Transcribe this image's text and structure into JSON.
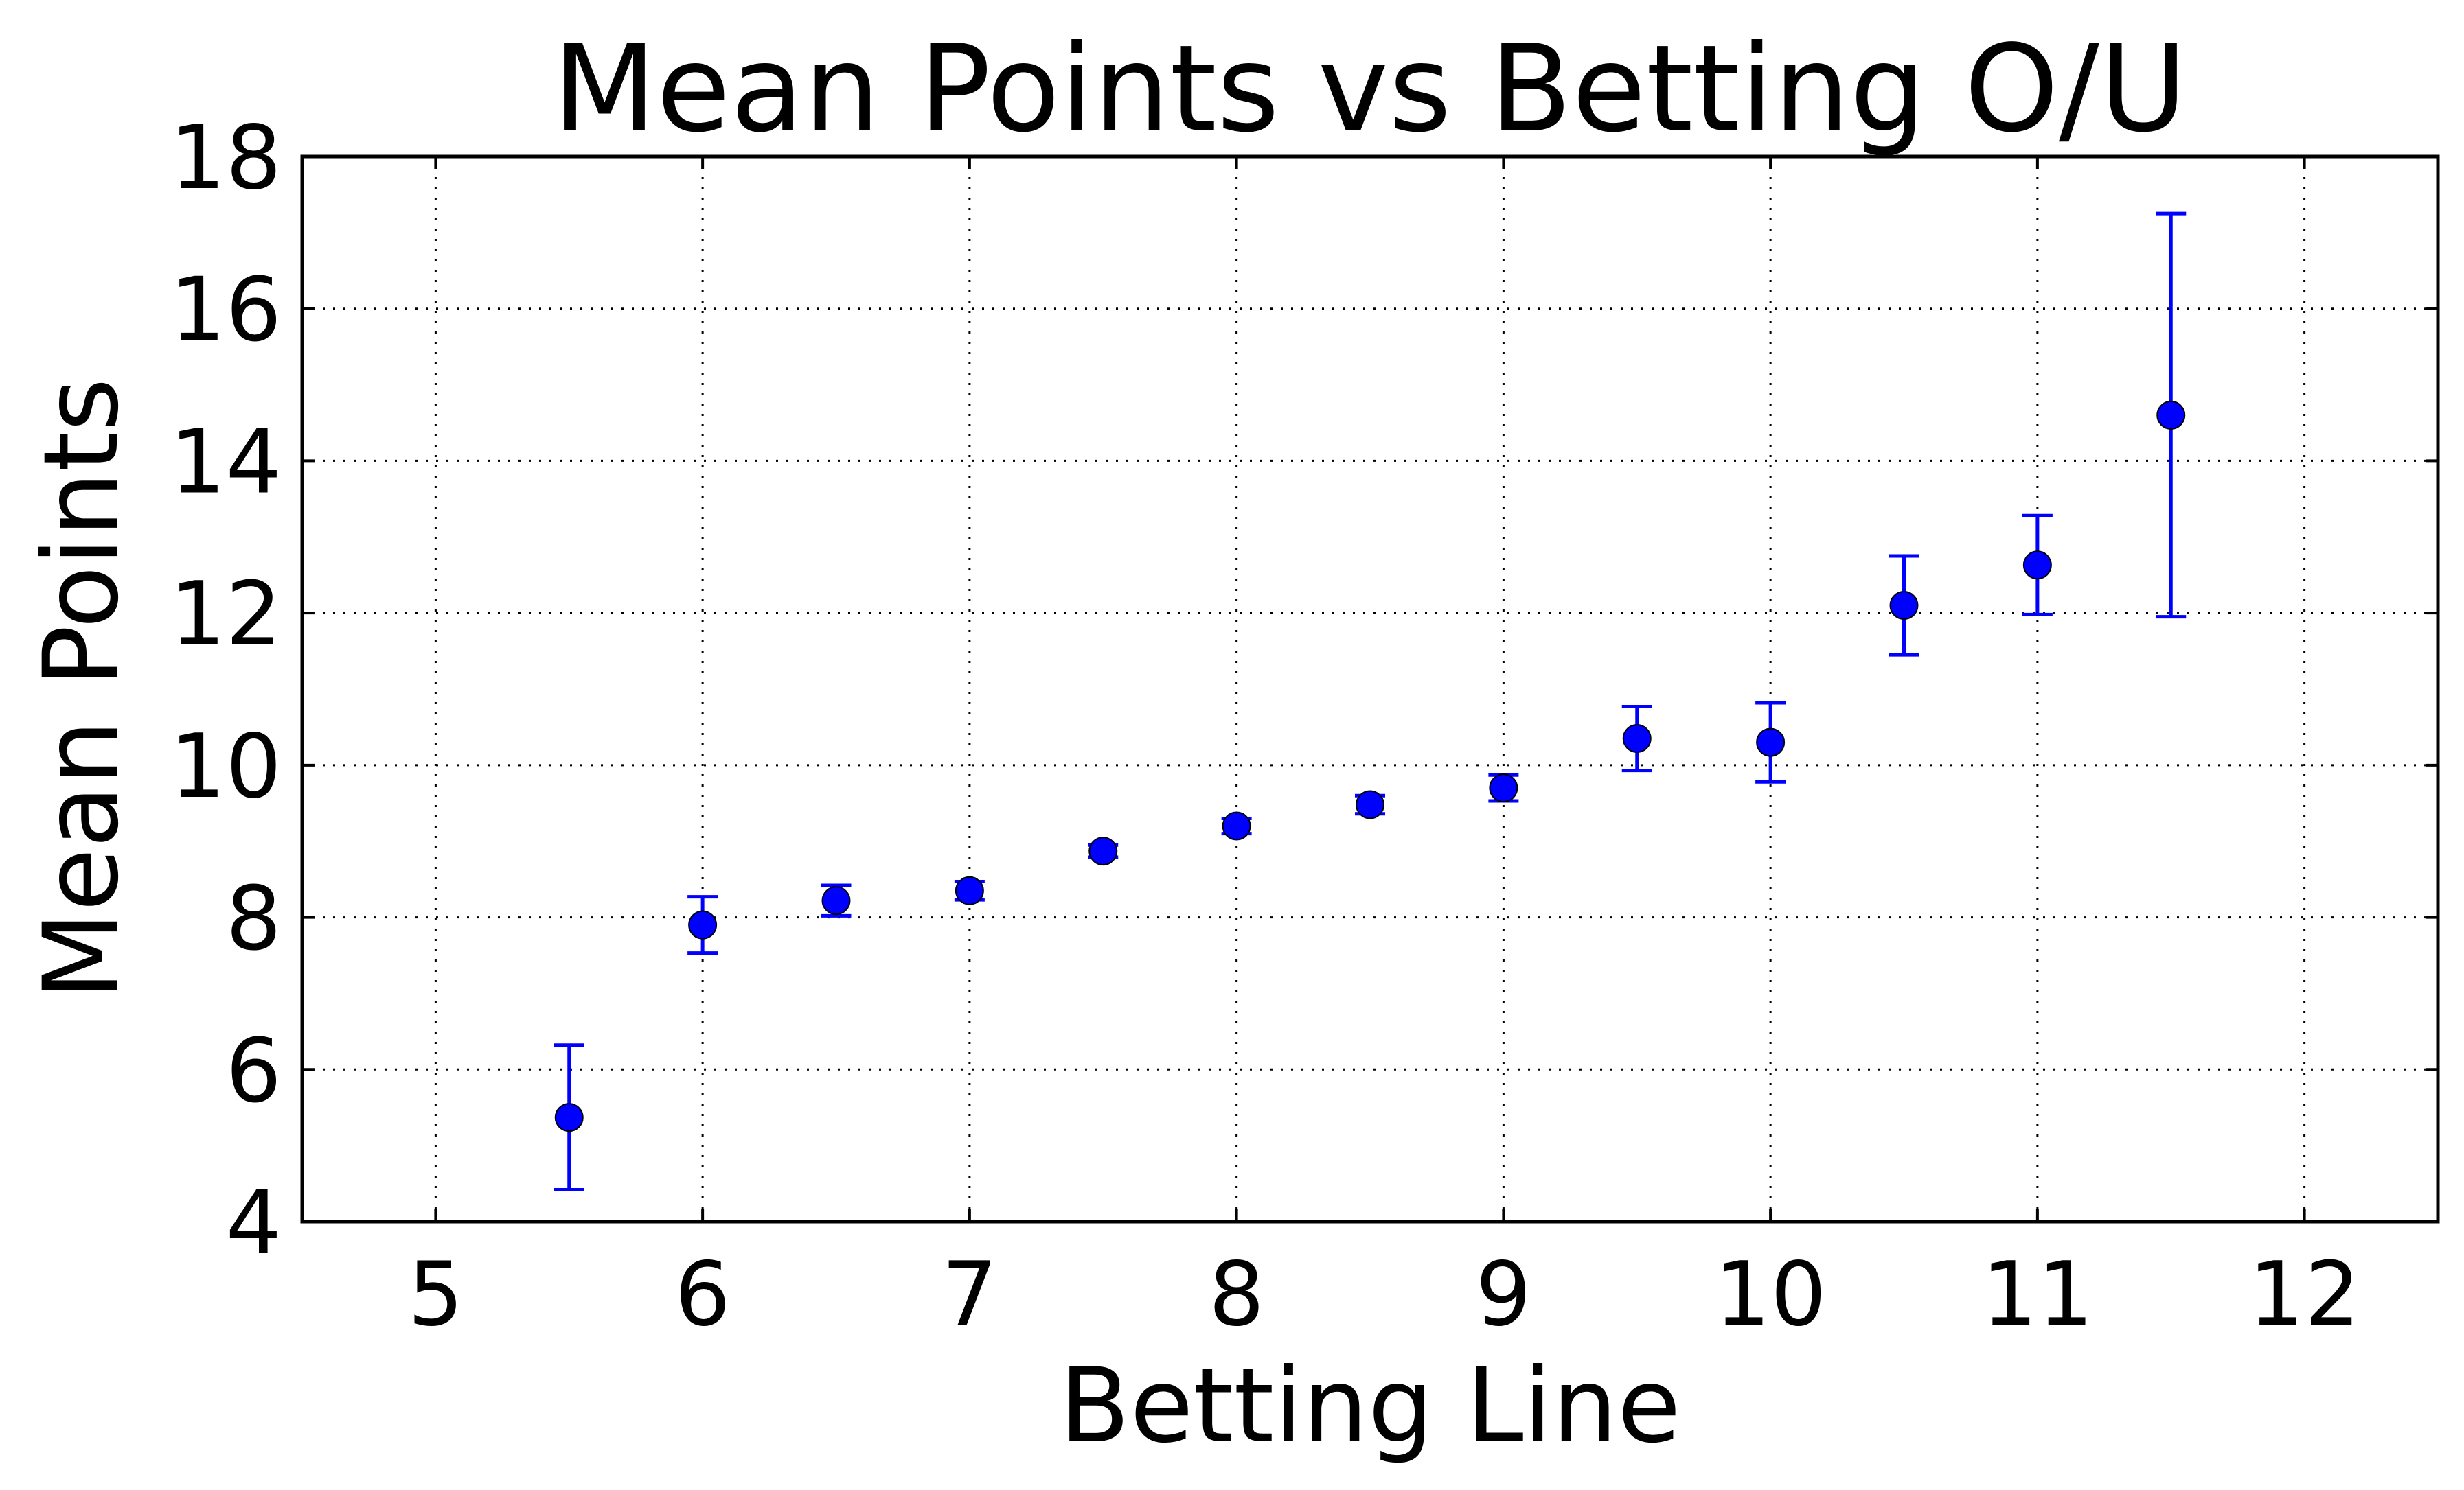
{
  "chart_data": {
    "type": "scatter",
    "title": "Mean Points vs Betting O/U",
    "xlabel": "Betting Line",
    "ylabel": "Mean Points",
    "xlim": [
      4.5,
      12.5
    ],
    "ylim": [
      4,
      18
    ],
    "xticks": [
      5,
      6,
      7,
      8,
      9,
      10,
      11,
      12
    ],
    "yticks": [
      4,
      6,
      8,
      10,
      12,
      14,
      16,
      18
    ],
    "grid": true,
    "color": "#0000ff",
    "points": [
      {
        "x": 5.5,
        "y": 5.37,
        "err": 0.95
      },
      {
        "x": 6.0,
        "y": 7.9,
        "err": 0.37
      },
      {
        "x": 6.5,
        "y": 8.22,
        "err": 0.2
      },
      {
        "x": 7.0,
        "y": 8.35,
        "err": 0.12
      },
      {
        "x": 7.5,
        "y": 8.87,
        "err": 0.08
      },
      {
        "x": 8.0,
        "y": 9.2,
        "err": 0.1
      },
      {
        "x": 8.5,
        "y": 9.48,
        "err": 0.12
      },
      {
        "x": 9.0,
        "y": 9.7,
        "err": 0.17
      },
      {
        "x": 9.5,
        "y": 10.35,
        "err": 0.42
      },
      {
        "x": 10.0,
        "y": 10.3,
        "err": 0.52
      },
      {
        "x": 10.5,
        "y": 12.1,
        "err": 0.65
      },
      {
        "x": 11.0,
        "y": 12.63,
        "err": 0.65
      },
      {
        "x": 11.5,
        "y": 14.6,
        "err": 2.65
      }
    ]
  }
}
